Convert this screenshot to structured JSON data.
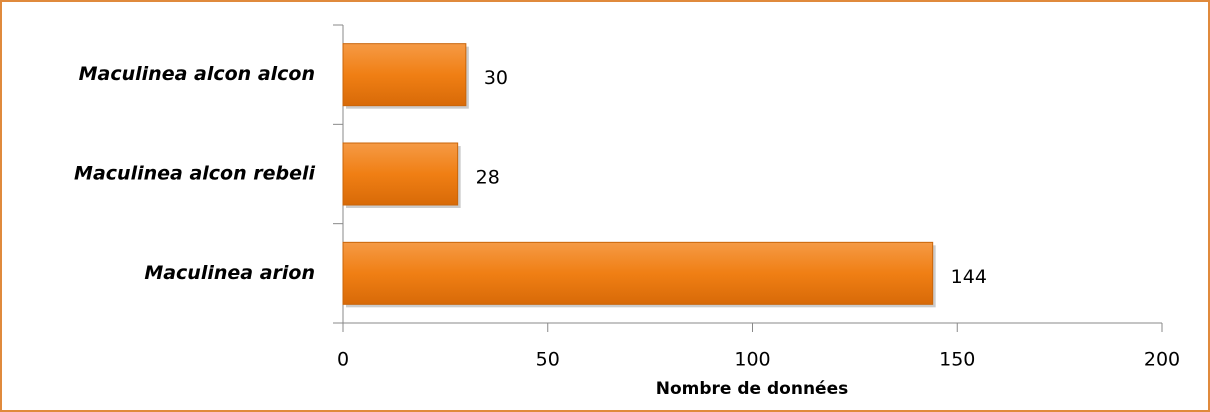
{
  "chart_data": {
    "type": "bar",
    "orientation": "horizontal",
    "categories": [
      "Maculinea alcon alcon",
      "Maculinea alcon rebeli",
      "Maculinea arion"
    ],
    "values": [
      30,
      28,
      144
    ],
    "color": "#f07f14",
    "x_label": "Nombre de données",
    "xlim": [
      0,
      200
    ],
    "xticks": [
      0,
      50,
      100,
      150,
      200
    ],
    "grid": false
  }
}
